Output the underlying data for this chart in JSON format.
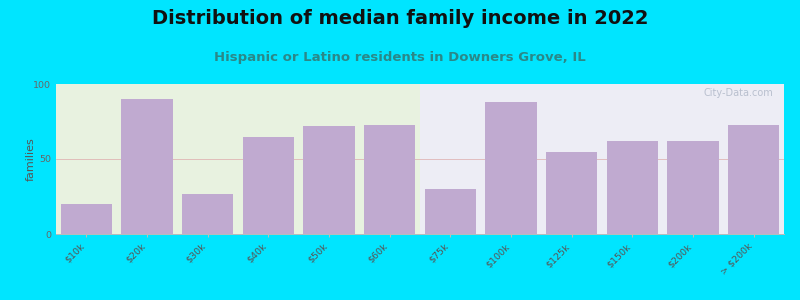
{
  "title": "Distribution of median family income in 2022",
  "subtitle": "Hispanic or Latino residents in Downers Grove, IL",
  "categories": [
    "$10k",
    "$20k",
    "$30k",
    "$40k",
    "$50k",
    "$60k",
    "$75k",
    "$100k",
    "$125k",
    "$150k",
    "$200k",
    "> $200k"
  ],
  "values": [
    20,
    90,
    27,
    65,
    72,
    73,
    30,
    88,
    55,
    62,
    62,
    73
  ],
  "bar_color": "#c0aad0",
  "bg_left_color": "#e8f2e0",
  "bg_right_color": "#ededf5",
  "figure_bg": "#00e5ff",
  "ylabel": "families",
  "ylim": [
    0,
    100
  ],
  "yticks": [
    0,
    50,
    100
  ],
  "title_color": "#111111",
  "subtitle_color": "#2a8888",
  "title_fontsize": 14,
  "subtitle_fontsize": 9.5,
  "ylabel_fontsize": 8,
  "tick_fontsize": 6.8,
  "watermark": "City-Data.com",
  "split_index": 6
}
